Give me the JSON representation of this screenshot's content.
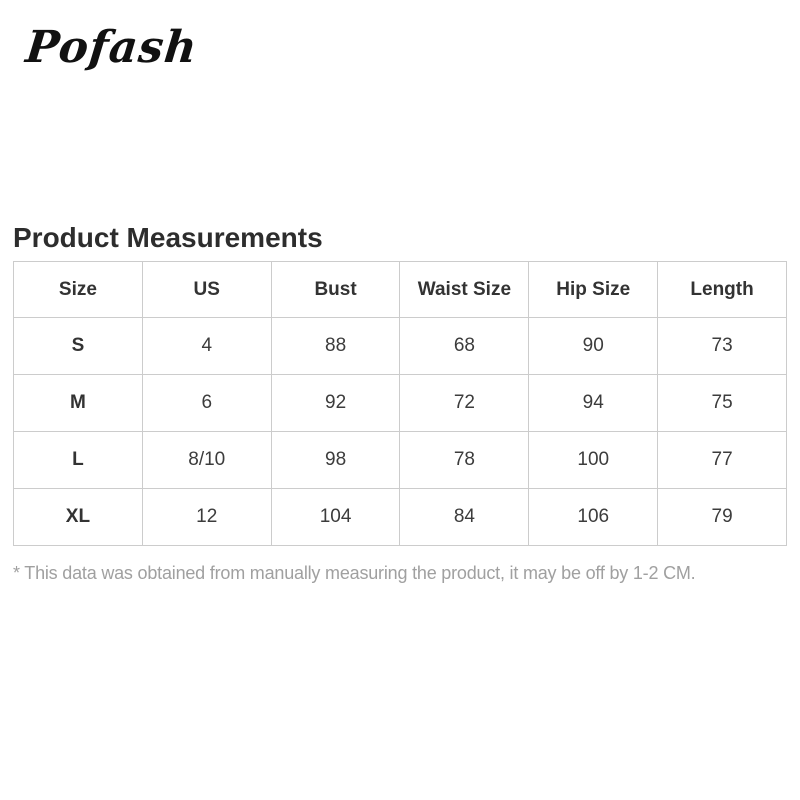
{
  "brand": {
    "logo_text": "Pofash"
  },
  "page": {
    "title": "Product Measurements",
    "footnote": "* This data was obtained from manually measuring the product, it may be off by 1-2 CM."
  },
  "colors": {
    "background": "#ffffff",
    "table_border": "#cccccc",
    "heading_text": "#2d2d2d",
    "body_text": "#3c3c3c",
    "footnote_text": "#a0a0a0",
    "logo_text": "#111111"
  },
  "chart_data": {
    "type": "table",
    "title": "Product Measurements",
    "columns": [
      "Size",
      "US",
      "Bust",
      "Waist Size",
      "Hip Size",
      "Length"
    ],
    "rows": [
      [
        "S",
        "4",
        "88",
        "68",
        "90",
        "73"
      ],
      [
        "M",
        "6",
        "92",
        "72",
        "94",
        "75"
      ],
      [
        "L",
        "8/10",
        "98",
        "78",
        "100",
        "77"
      ],
      [
        "XL",
        "12",
        "104",
        "84",
        "106",
        "79"
      ]
    ]
  },
  "table": {
    "headers": {
      "size": "Size",
      "us": "US",
      "bust": "Bust",
      "waist": "Waist Size",
      "hip": "Hip Size",
      "length": "Length"
    },
    "rows": {
      "0": {
        "size": "S",
        "us": "4",
        "bust": "88",
        "waist": "68",
        "hip": "90",
        "length": "73"
      },
      "1": {
        "size": "M",
        "us": "6",
        "bust": "92",
        "waist": "72",
        "hip": "94",
        "length": "75"
      },
      "2": {
        "size": "L",
        "us": "8/10",
        "bust": "98",
        "waist": "78",
        "hip": "100",
        "length": "77"
      },
      "3": {
        "size": "XL",
        "us": "12",
        "bust": "104",
        "waist": "84",
        "hip": "106",
        "length": "79"
      }
    }
  }
}
